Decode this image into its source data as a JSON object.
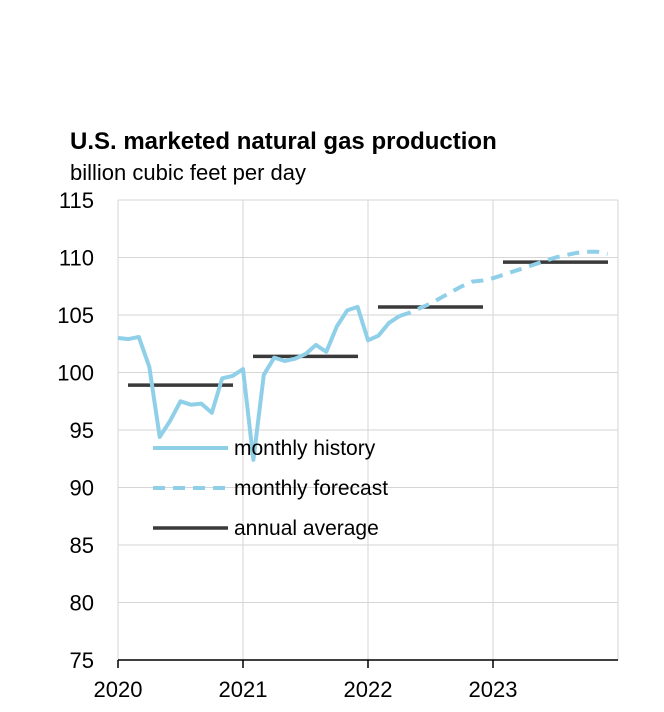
{
  "chart_data": {
    "type": "line",
    "title": "U.S. marketed natural gas production",
    "subtitle": "billion cubic feet per day",
    "ylim": [
      75,
      115
    ],
    "yticks": [
      75,
      80,
      85,
      90,
      95,
      100,
      105,
      110,
      115
    ],
    "xlim": [
      "2020-01",
      "2024-01"
    ],
    "xticks": [
      "2020",
      "2021",
      "2022",
      "2023"
    ],
    "grid": true,
    "legend_position": "inside-lower-left",
    "colors": {
      "history": "#8fd0e8",
      "forecast": "#8fd0e8",
      "annual": "#3a3a3a",
      "grid": "#d6d6d6",
      "axis": "#000000"
    },
    "series": [
      {
        "name": "monthly history",
        "style": "solid",
        "points": [
          [
            "2020-01",
            103.0
          ],
          [
            "2020-02",
            102.9
          ],
          [
            "2020-03",
            103.1
          ],
          [
            "2020-04",
            100.5
          ],
          [
            "2020-05",
            94.4
          ],
          [
            "2020-06",
            95.8
          ],
          [
            "2020-07",
            97.5
          ],
          [
            "2020-08",
            97.2
          ],
          [
            "2020-09",
            97.3
          ],
          [
            "2020-10",
            96.5
          ],
          [
            "2020-11",
            99.5
          ],
          [
            "2020-12",
            99.7
          ],
          [
            "2021-01",
            100.3
          ],
          [
            "2021-02",
            92.4
          ],
          [
            "2021-03",
            99.8
          ],
          [
            "2021-04",
            101.3
          ],
          [
            "2021-05",
            101.0
          ],
          [
            "2021-06",
            101.2
          ],
          [
            "2021-07",
            101.6
          ],
          [
            "2021-08",
            102.4
          ],
          [
            "2021-09",
            101.8
          ],
          [
            "2021-10",
            104.0
          ],
          [
            "2021-11",
            105.4
          ],
          [
            "2021-12",
            105.7
          ],
          [
            "2022-01",
            102.8
          ],
          [
            "2022-02",
            103.2
          ],
          [
            "2022-03",
            104.3
          ],
          [
            "2022-04",
            104.9
          ]
        ]
      },
      {
        "name": "monthly forecast",
        "style": "dashed",
        "points": [
          [
            "2022-04",
            104.9
          ],
          [
            "2022-05",
            105.2
          ],
          [
            "2022-06",
            105.6
          ],
          [
            "2022-07",
            106.0
          ],
          [
            "2022-08",
            106.5
          ],
          [
            "2022-09",
            107.0
          ],
          [
            "2022-10",
            107.5
          ],
          [
            "2022-11",
            107.9
          ],
          [
            "2022-12",
            108.0
          ],
          [
            "2023-01",
            108.2
          ],
          [
            "2023-02",
            108.5
          ],
          [
            "2023-03",
            108.8
          ],
          [
            "2023-04",
            109.1
          ],
          [
            "2023-05",
            109.4
          ],
          [
            "2023-06",
            109.7
          ],
          [
            "2023-07",
            110.0
          ],
          [
            "2023-08",
            110.2
          ],
          [
            "2023-09",
            110.4
          ],
          [
            "2023-10",
            110.5
          ],
          [
            "2023-11",
            110.5
          ],
          [
            "2023-12",
            110.3
          ]
        ]
      },
      {
        "name": "annual average",
        "style": "step",
        "segments": [
          {
            "year": "2020",
            "value": 98.9
          },
          {
            "year": "2021",
            "value": 101.4
          },
          {
            "year": "2022",
            "value": 105.7
          },
          {
            "year": "2023",
            "value": 109.6
          }
        ]
      }
    ]
  }
}
